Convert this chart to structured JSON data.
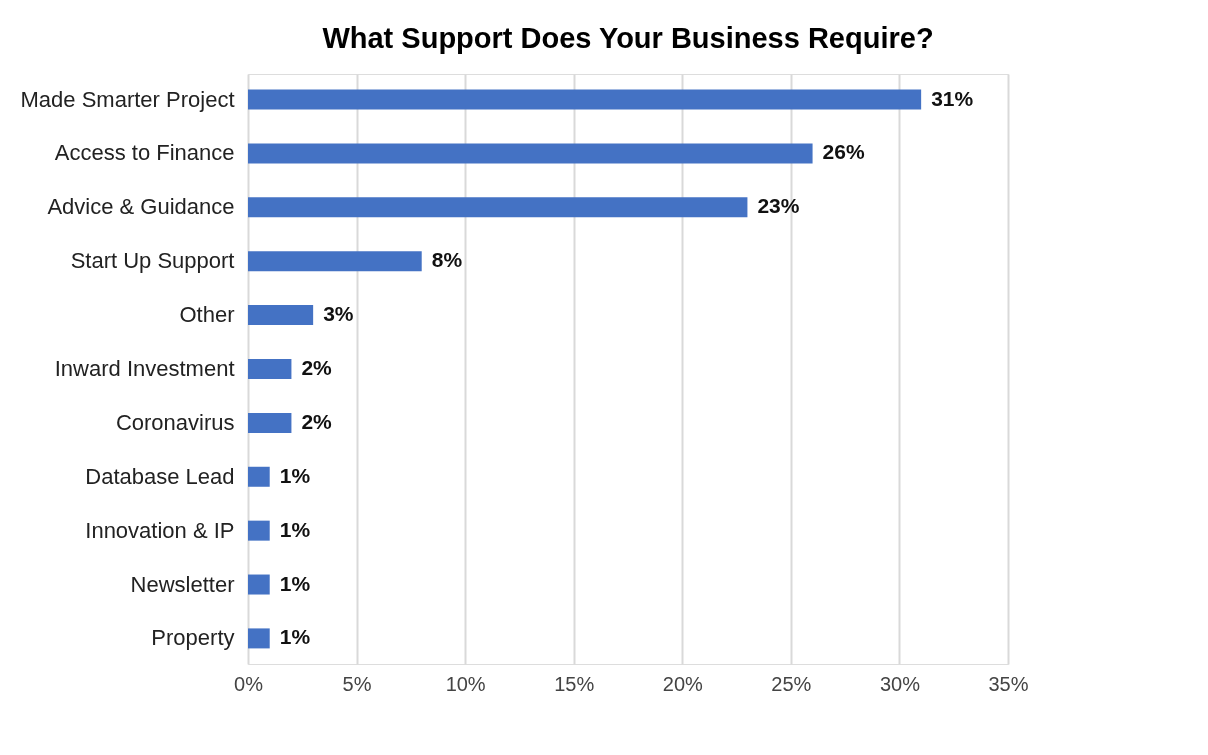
{
  "chart_data": {
    "type": "bar",
    "orientation": "horizontal",
    "title": "What Support Does Your Business Require?",
    "categories": [
      "Made Smarter Project",
      "Access to Finance",
      "Advice & Guidance",
      "Start Up Support",
      "Other",
      "Inward Investment",
      "Coronavirus",
      "Database Lead",
      "Innovation & IP",
      "Newsletter",
      "Property"
    ],
    "values": [
      31,
      26,
      23,
      8,
      3,
      2,
      2,
      1,
      1,
      1,
      1
    ],
    "color": "#4472c4",
    "xlim": [
      0,
      35
    ],
    "xticks": [
      {
        "value": 0,
        "label": "0%"
      },
      {
        "value": 5,
        "label": "5%"
      },
      {
        "value": 10,
        "label": "10%"
      },
      {
        "value": 15,
        "label": "15%"
      },
      {
        "value": 20,
        "label": "20%"
      },
      {
        "value": 25,
        "label": "25%"
      },
      {
        "value": 30,
        "label": "30%"
      },
      {
        "value": 35,
        "label": "35%"
      }
    ],
    "value_labels": [
      "31%",
      "26%",
      "23%",
      "8%",
      "3%",
      "2%",
      "2%",
      "1%",
      "1%",
      "1%",
      "1%"
    ],
    "grid": "x"
  }
}
